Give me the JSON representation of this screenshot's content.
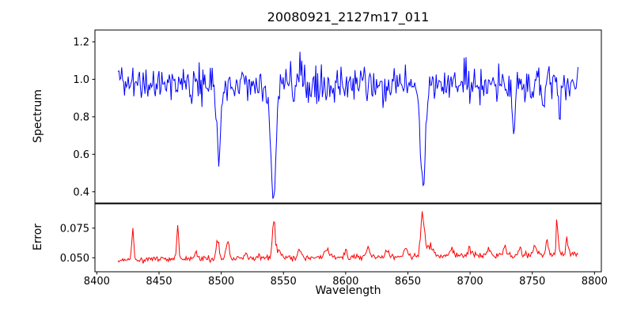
{
  "figure": {
    "title": "20080921_2127m17_011",
    "xlabel": "Wavelength",
    "background": "#ffffff",
    "text_color": "#000000",
    "spine_color": "#000000"
  },
  "chart_data": {
    "type": "line",
    "title": "20080921_2127m17_011",
    "xlabel": "Wavelength",
    "legend": null,
    "grid": false,
    "xlim": [
      8398.5,
      8805.5
    ],
    "x_data_range": [
      8417,
      8787
    ],
    "x_step": 0.75,
    "xticks": {
      "values": [
        8400,
        8450,
        8500,
        8550,
        8600,
        8650,
        8700,
        8750,
        8800
      ],
      "labels": [
        "8400",
        "8450",
        "8500",
        "8550",
        "8600",
        "8650",
        "8700",
        "8750",
        "8800"
      ]
    },
    "subplots": [
      {
        "name": "spectrum",
        "ylabel": "Spectrum",
        "line_color": "#0000ff",
        "ylim": [
          0.34,
          1.263
        ],
        "yticks": {
          "values": [
            0.4,
            0.6,
            0.8,
            1.0,
            1.2
          ],
          "labels": [
            "0.4",
            "0.6",
            "0.8",
            "1.0",
            "1.2"
          ]
        },
        "continuum": 0.975,
        "noise_sigma": 0.047,
        "noise_tail": 0.006,
        "clip": [
          0.355,
          1.225
        ],
        "absorption_lines": [
          {
            "center": 8498,
            "depth": 0.4,
            "sigma": 1.8
          },
          {
            "center": 8542,
            "depth": 0.63,
            "sigma": 2.0
          },
          {
            "center": 8662,
            "depth": 0.56,
            "sigma": 2.0
          },
          {
            "center": 8735,
            "depth": 0.27,
            "sigma": 1.0
          },
          {
            "center": 8759,
            "depth": 0.14,
            "sigma": 0.9
          },
          {
            "center": 8772,
            "depth": 0.16,
            "sigma": 0.9
          }
        ]
      },
      {
        "name": "error",
        "ylabel": "Error",
        "line_color": "#ff0000",
        "ylim": [
          0.0382,
          0.0955
        ],
        "yticks": {
          "values": [
            0.05,
            0.075
          ],
          "labels": [
            "0.050",
            "0.075"
          ]
        },
        "baseline": 0.0482,
        "baseline_slope": 1.25e-05,
        "noise_sigma": 0.0013,
        "clip": [
          0.0445,
          0.0945
        ],
        "spikes": [
          {
            "center": 8429,
            "height": 0.023,
            "sigma": 0.8
          },
          {
            "center": 8465,
            "height": 0.026,
            "sigma": 0.8
          },
          {
            "center": 8480,
            "height": 0.004,
            "sigma": 1.5
          },
          {
            "center": 8497,
            "height": 0.015,
            "sigma": 1.2
          },
          {
            "center": 8505,
            "height": 0.013,
            "sigma": 1.2
          },
          {
            "center": 8520,
            "height": 0.004,
            "sigma": 1.0
          },
          {
            "center": 8542,
            "height": 0.026,
            "sigma": 1.0
          },
          {
            "center": 8545,
            "height": 0.008,
            "sigma": 2.5
          },
          {
            "center": 8563,
            "height": 0.006,
            "sigma": 1.2
          },
          {
            "center": 8585,
            "height": 0.009,
            "sigma": 1.5
          },
          {
            "center": 8600,
            "height": 0.005,
            "sigma": 1.2
          },
          {
            "center": 8618,
            "height": 0.009,
            "sigma": 1.0
          },
          {
            "center": 8633,
            "height": 0.006,
            "sigma": 1.0
          },
          {
            "center": 8648,
            "height": 0.007,
            "sigma": 1.5
          },
          {
            "center": 8662,
            "height": 0.039,
            "sigma": 1.3
          },
          {
            "center": 8668,
            "height": 0.008,
            "sigma": 2.5
          },
          {
            "center": 8685,
            "height": 0.007,
            "sigma": 1.2
          },
          {
            "center": 8700,
            "height": 0.006,
            "sigma": 1.5
          },
          {
            "center": 8715,
            "height": 0.005,
            "sigma": 1.2
          },
          {
            "center": 8728,
            "height": 0.008,
            "sigma": 1.0
          },
          {
            "center": 8740,
            "height": 0.007,
            "sigma": 1.0
          },
          {
            "center": 8752,
            "height": 0.007,
            "sigma": 1.2
          },
          {
            "center": 8762,
            "height": 0.01,
            "sigma": 1.0
          },
          {
            "center": 8770,
            "height": 0.022,
            "sigma": 0.9
          },
          {
            "center": 8778,
            "height": 0.013,
            "sigma": 1.0
          }
        ]
      }
    ]
  }
}
